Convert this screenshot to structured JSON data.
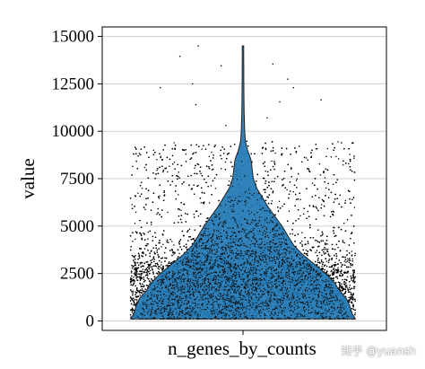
{
  "chart_data": {
    "type": "violin",
    "category": "n_genes_by_counts",
    "ylabel": "value",
    "ylim": [
      -500,
      15500
    ],
    "yticks": [
      0,
      2500,
      5000,
      7500,
      10000,
      12500,
      15000
    ],
    "ytick_labels": [
      "0",
      "2500",
      "5000",
      "7500",
      "10000",
      "12500",
      "15000"
    ],
    "grid": "horizontal",
    "violin_color": "#1f77b4",
    "point_color": "#000000",
    "summary": {
      "min": 100,
      "max": 14500,
      "mode_approx": 2000,
      "n_points_shown": "approx"
    },
    "density_profile": [
      {
        "value": 100,
        "half_width": 0.98
      },
      {
        "value": 400,
        "half_width": 0.95
      },
      {
        "value": 800,
        "half_width": 0.93
      },
      {
        "value": 1200,
        "half_width": 0.9
      },
      {
        "value": 1600,
        "half_width": 0.84
      },
      {
        "value": 2000,
        "half_width": 0.8
      },
      {
        "value": 2500,
        "half_width": 0.72
      },
      {
        "value": 3000,
        "half_width": 0.62
      },
      {
        "value": 3500,
        "half_width": 0.52
      },
      {
        "value": 4000,
        "half_width": 0.44
      },
      {
        "value": 4500,
        "half_width": 0.39
      },
      {
        "value": 5000,
        "half_width": 0.34
      },
      {
        "value": 5500,
        "half_width": 0.28
      },
      {
        "value": 6000,
        "half_width": 0.22
      },
      {
        "value": 6500,
        "half_width": 0.17
      },
      {
        "value": 7000,
        "half_width": 0.12
      },
      {
        "value": 7500,
        "half_width": 0.09
      },
      {
        "value": 8000,
        "half_width": 0.08
      },
      {
        "value": 8500,
        "half_width": 0.07
      },
      {
        "value": 9000,
        "half_width": 0.04
      },
      {
        "value": 9500,
        "half_width": 0.02
      },
      {
        "value": 10000,
        "half_width": 0.015
      },
      {
        "value": 11000,
        "half_width": 0.01
      },
      {
        "value": 12000,
        "half_width": 0.008
      },
      {
        "value": 13000,
        "half_width": 0.007
      },
      {
        "value": 14500,
        "half_width": 0.006
      }
    ],
    "outliers": [
      {
        "value": 13950,
        "jitter": -0.55
      },
      {
        "value": 14500,
        "jitter": -0.39
      },
      {
        "value": 12300,
        "jitter": -0.72
      },
      {
        "value": 12500,
        "jitter": -0.44
      },
      {
        "value": 11400,
        "jitter": -0.41
      },
      {
        "value": 13450,
        "jitter": -0.19
      },
      {
        "value": 13550,
        "jitter": 0.26
      },
      {
        "value": 12750,
        "jitter": 0.39
      },
      {
        "value": 12300,
        "jitter": 0.44
      },
      {
        "value": 11650,
        "jitter": 0.68
      },
      {
        "value": 11550,
        "jitter": 0.32
      },
      {
        "value": 10700,
        "jitter": 0.21
      },
      {
        "value": 10300,
        "jitter": -0.15
      }
    ]
  },
  "watermark": "知乎 @yuansh"
}
